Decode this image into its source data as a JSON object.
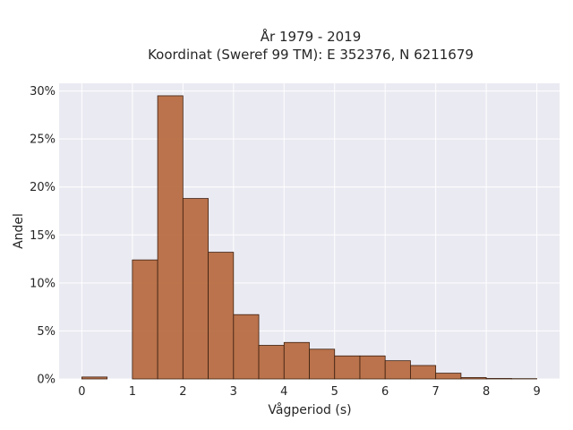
{
  "chart_data": {
    "type": "bar",
    "title": "År 1979 - 2019",
    "subtitle": "Koordinat (Sweref 99 TM): E 352376, N 6211679",
    "xlabel": "Vågperiod (s)",
    "ylabel": "Andel",
    "bin_width": 0.5,
    "bins": [
      {
        "start": 0.0,
        "value": 0.2
      },
      {
        "start": 0.5,
        "value": 0.0
      },
      {
        "start": 1.0,
        "value": 12.4
      },
      {
        "start": 1.5,
        "value": 29.5
      },
      {
        "start": 2.0,
        "value": 18.8
      },
      {
        "start": 2.5,
        "value": 13.2
      },
      {
        "start": 3.0,
        "value": 6.7
      },
      {
        "start": 3.5,
        "value": 3.5
      },
      {
        "start": 4.0,
        "value": 3.8
      },
      {
        "start": 4.5,
        "value": 3.1
      },
      {
        "start": 5.0,
        "value": 2.4
      },
      {
        "start": 5.5,
        "value": 2.4
      },
      {
        "start": 6.0,
        "value": 1.9
      },
      {
        "start": 6.5,
        "value": 1.4
      },
      {
        "start": 7.0,
        "value": 0.6
      },
      {
        "start": 7.5,
        "value": 0.15
      },
      {
        "start": 8.0,
        "value": 0.05
      },
      {
        "start": 8.5,
        "value": 0.03
      }
    ],
    "xlim": [
      -0.45,
      9.45
    ],
    "ylim": [
      0,
      30.8
    ],
    "xticks": [
      0,
      1,
      2,
      3,
      4,
      5,
      6,
      7,
      8,
      9
    ],
    "xtick_labels": [
      "0",
      "1",
      "2",
      "3",
      "4",
      "5",
      "6",
      "7",
      "8",
      "9"
    ],
    "yticks": [
      0,
      5,
      10,
      15,
      20,
      25,
      30
    ],
    "ytick_labels": [
      "0%",
      "5%",
      "10%",
      "15%",
      "20%",
      "25%",
      "30%"
    ],
    "grid": true,
    "colors": {
      "bar_fill": "#b5663a",
      "bar_edge": "#3d2010",
      "plot_bg": "#eaeaf2",
      "grid": "#ffffff",
      "text": "#262626"
    }
  }
}
